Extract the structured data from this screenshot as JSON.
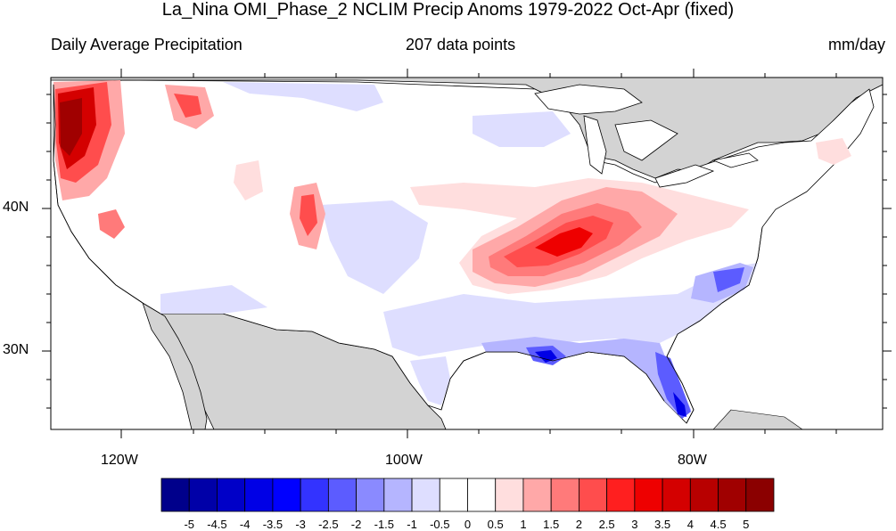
{
  "title": "La_Nina OMI_Phase_2 NCLIM Precip Anoms 1979-2022 Oct-Apr (fixed)",
  "left_header": "Daily Average Precipitation",
  "center_header": "207 data points",
  "right_header": "mm/day",
  "lat_labels": [
    "40N",
    "30N"
  ],
  "lon_labels": [
    "120W",
    "100W",
    "80W"
  ],
  "colorbar": {
    "labels": [
      "-5",
      "-4.5",
      "-4",
      "-3.5",
      "-3",
      "-2.5",
      "-2",
      "-1.5",
      "-1",
      "-0.5",
      "0",
      "0.5",
      "1",
      "1.5",
      "2",
      "2.5",
      "3",
      "3.5",
      "4",
      "4.5",
      "5"
    ],
    "colors": [
      "#00008b",
      "#0000a8",
      "#0000c8",
      "#0000e6",
      "#0000ff",
      "#3333ff",
      "#5c5cff",
      "#8a8aff",
      "#b5b5ff",
      "#dedeff",
      "#ffffff",
      "#ffffff",
      "#ffdede",
      "#ffa8a8",
      "#ff7a7a",
      "#ff4d4d",
      "#ff1f1f",
      "#ee0000",
      "#d40000",
      "#b80000",
      "#a00000",
      "#8b0000"
    ]
  },
  "colors": {
    "land_outside": "#d3d3d3",
    "ocean": "#ffffff",
    "border": "#000000"
  }
}
